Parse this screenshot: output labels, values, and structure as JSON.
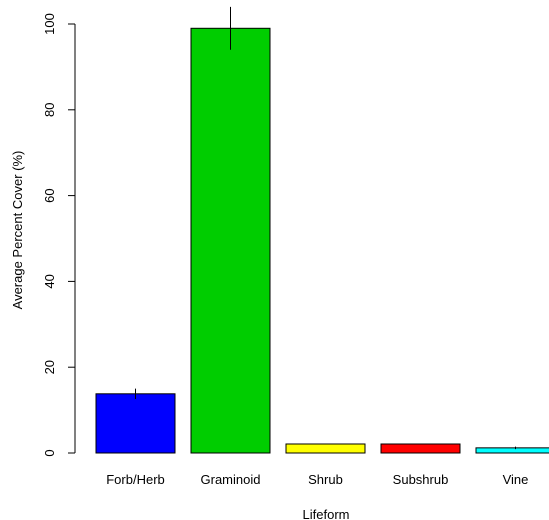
{
  "chart_data": {
    "type": "bar",
    "title": "",
    "xlabel": "Lifeform",
    "ylabel": "Average Percent Cover (%)",
    "ylim": [
      0,
      100
    ],
    "yticks": [
      0,
      20,
      40,
      60,
      80,
      100
    ],
    "grid": false,
    "legend": "none",
    "categories": [
      "Forb/Herb",
      "Graminoid",
      "Shrub",
      "Subshrub",
      "Vine"
    ],
    "values": [
      13.8,
      99.0,
      2.1,
      2.1,
      1.2
    ],
    "error": [
      1.2,
      5.0,
      0.0,
      0.0,
      0.3
    ],
    "colors": [
      "#0000ff",
      "#00cd00",
      "#ffff00",
      "#ff0000",
      "#00ffff"
    ],
    "error_bars": true
  }
}
